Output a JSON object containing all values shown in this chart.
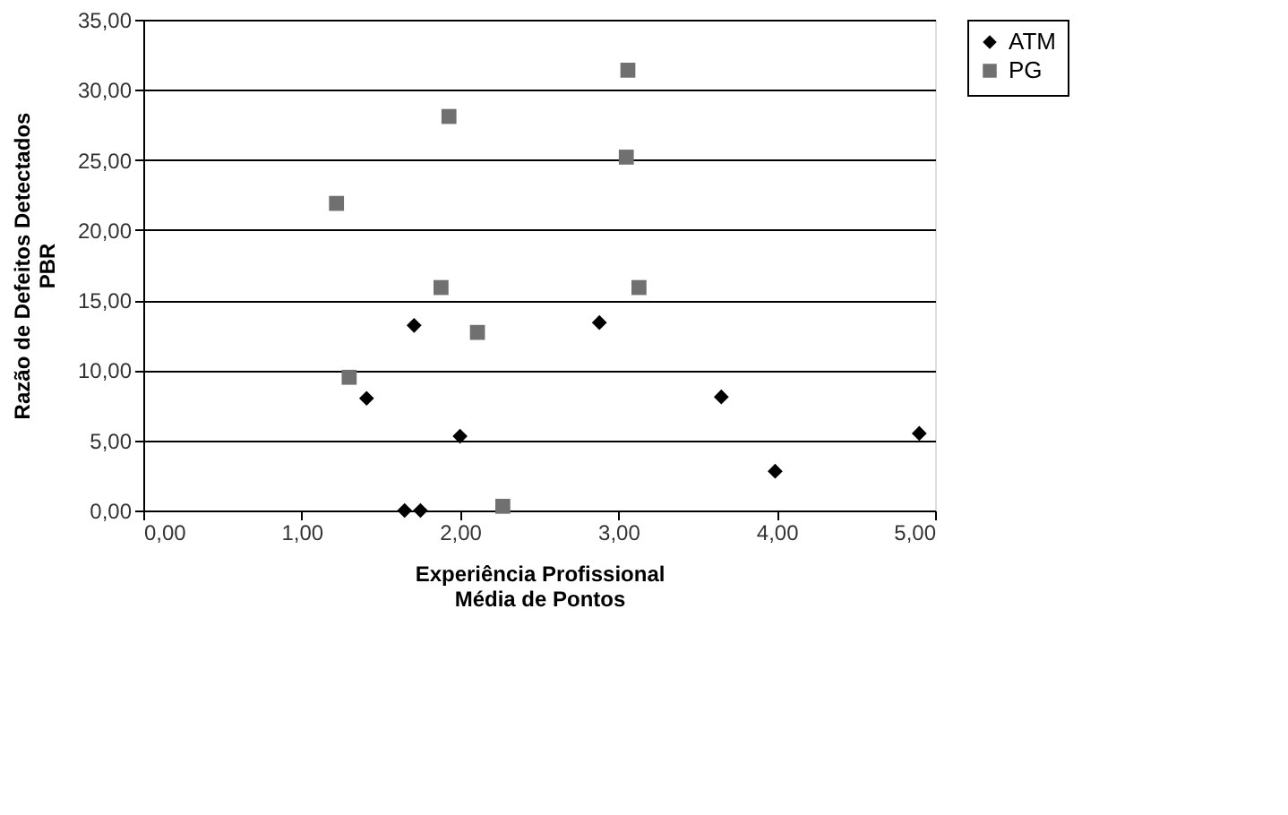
{
  "chart_data": {
    "type": "scatter",
    "xlabel": "Experiência Profissional\nMédia de Pontos",
    "ylabel": "Razão de Defeitos Detectados\nPBR",
    "series": [
      {
        "name": "ATM",
        "color": "#000000",
        "marker": "diamond",
        "x": [
          1.71,
          2.88,
          1.41,
          3.65,
          2.0,
          4.9,
          3.99,
          1.65,
          1.75
        ],
        "values": [
          13.2,
          13.4,
          8.0,
          8.1,
          5.3,
          5.5,
          2.8,
          0,
          0
        ]
      },
      {
        "name": "PG",
        "color": "#707070",
        "marker": "square",
        "x": [
          3.06,
          1.93,
          3.05,
          1.22,
          1.88,
          3.13,
          2.11,
          1.3,
          2.27
        ],
        "values": [
          31.4,
          28.1,
          25.2,
          21.9,
          15.9,
          15.9,
          12.7,
          9.5,
          0.3
        ]
      }
    ],
    "xlim": [
      0,
      5
    ],
    "ylim": [
      0,
      35
    ],
    "xticks": [
      {
        "value": 0,
        "label": "0,00"
      },
      {
        "value": 1,
        "label": "1,00"
      },
      {
        "value": 2,
        "label": "2,00"
      },
      {
        "value": 3,
        "label": "3,00"
      },
      {
        "value": 4,
        "label": "4,00"
      },
      {
        "value": 5,
        "label": "5,00"
      }
    ],
    "yticks": [
      {
        "value": 0,
        "label": "0,00"
      },
      {
        "value": 5,
        "label": "5,00"
      },
      {
        "value": 10,
        "label": "10,00"
      },
      {
        "value": 15,
        "label": "15,00"
      },
      {
        "value": 20,
        "label": "20,00"
      },
      {
        "value": 25,
        "label": "25,00"
      },
      {
        "value": 30,
        "label": "30,00"
      },
      {
        "value": 35,
        "label": "35,00"
      }
    ],
    "grid": "y",
    "legend": "right"
  }
}
